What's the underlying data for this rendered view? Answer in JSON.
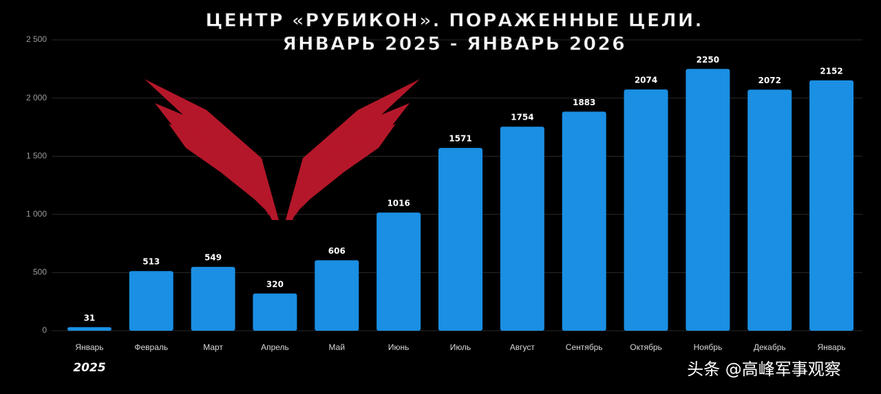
{
  "chart_data": {
    "type": "bar",
    "title": "ЦЕНТР «РУБИКОН». ПОРАЖЕННЫЕ ЦЕЛИ.",
    "subtitle": "ЯНВАРЬ 2025 - ЯНВАРЬ 2026",
    "categories": [
      "Январь",
      "Февраль",
      "Март",
      "Апрель",
      "Май",
      "Июнь",
      "Июль",
      "Август",
      "Сентябрь",
      "Октябрь",
      "Ноябрь",
      "Декабрь",
      "Январь"
    ],
    "values": [
      31,
      513,
      549,
      320,
      606,
      1016,
      1571,
      1754,
      1883,
      2074,
      2250,
      2072,
      2152
    ],
    "color": "#1a8fe3",
    "ylim": [
      0,
      2500
    ],
    "yticks": [
      0,
      500,
      {
        "value": 1000,
        "label": "1 000"
      },
      {
        "value": 1500,
        "label": "1 500"
      },
      {
        "value": 2000,
        "label": "2 000"
      },
      {
        "value": 2500,
        "label": "2 500"
      }
    ],
    "grid": true,
    "annotations": [
      "2025",
      "头条 @高峰军事观察"
    ]
  }
}
